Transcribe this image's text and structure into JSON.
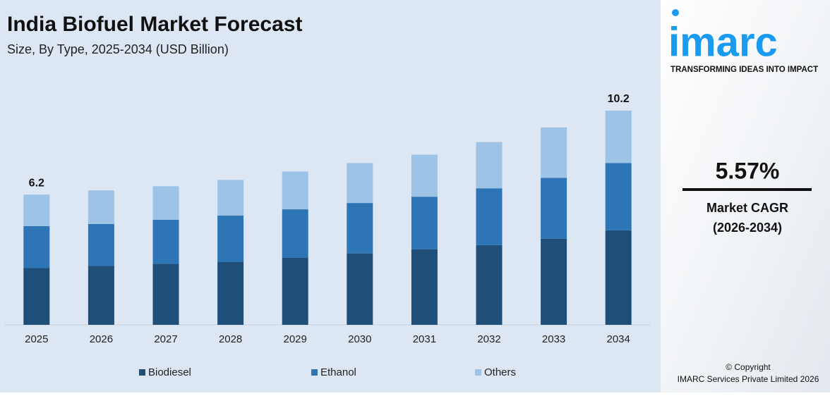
{
  "chart_data": {
    "type": "stacked-bar",
    "title": "India Biofuel Market Forecast",
    "subtitle": "Size, By Type, 2025-2034 (USD Billion)",
    "categories": [
      "2025",
      "2026",
      "2027",
      "2028",
      "2029",
      "2030",
      "2031",
      "2032",
      "2033",
      "2034"
    ],
    "series": [
      {
        "name": "Biodiesel",
        "color": "#1f4e79",
        "values": [
          2.7,
          2.8,
          2.9,
          3.0,
          3.2,
          3.4,
          3.6,
          3.8,
          4.1,
          4.5
        ]
      },
      {
        "name": "Ethanol",
        "color": "#2e75b6",
        "values": [
          2.0,
          2.0,
          2.1,
          2.2,
          2.3,
          2.4,
          2.5,
          2.7,
          2.9,
          3.2
        ]
      },
      {
        "name": "Others",
        "color": "#9dc3e6",
        "values": [
          1.5,
          1.6,
          1.6,
          1.7,
          1.8,
          1.9,
          2.0,
          2.2,
          2.4,
          2.5
        ]
      }
    ],
    "total_labels": [
      "6.2",
      null,
      null,
      null,
      null,
      null,
      null,
      null,
      null,
      "10.2"
    ],
    "ylim": [
      0,
      10.5
    ]
  },
  "sidebar": {
    "logo": "imarc",
    "tagline": "TRANSFORMING IDEAS INTO IMPACT",
    "cagr": "5.57%",
    "cagr_label": "Market CAGR",
    "cagr_period": "(2026-2034)",
    "copyright": "© Copyright",
    "company": "IMARC Services Private Limited 2026"
  }
}
